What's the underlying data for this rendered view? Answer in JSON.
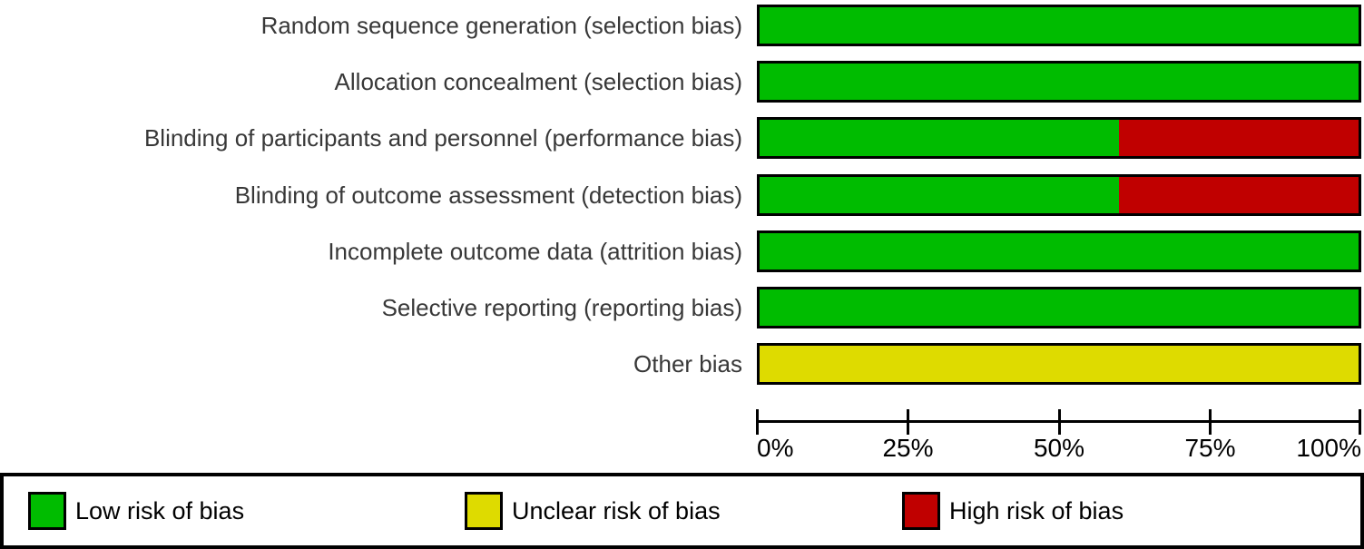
{
  "figure": {
    "background": "#ffffff",
    "text_color": "#383838",
    "axis_color": "#000000"
  },
  "chart_data": {
    "type": "bar",
    "orientation": "horizontal",
    "stacked": true,
    "title": "",
    "xlabel": "",
    "ylabel": "",
    "xlim": [
      0,
      100
    ],
    "grid": false,
    "legend_position": "bottom",
    "categories": [
      "Random sequence generation (selection bias)",
      "Allocation concealment (selection bias)",
      "Blinding of participants and personnel (performance bias)",
      "Blinding of outcome assessment (detection bias)",
      "Incomplete outcome data (attrition bias)",
      "Selective reporting (reporting bias)",
      "Other bias"
    ],
    "series": [
      {
        "name": "Low risk of bias",
        "color": "#00bc00",
        "values": [
          100,
          100,
          60,
          60,
          100,
          100,
          0
        ]
      },
      {
        "name": "Unclear risk of bias",
        "color": "#dedb00",
        "values": [
          0,
          0,
          0,
          0,
          0,
          0,
          100
        ]
      },
      {
        "name": "High risk of bias",
        "color": "#c00000",
        "values": [
          0,
          0,
          40,
          40,
          0,
          0,
          0
        ]
      }
    ],
    "x_tick_positions": [
      0,
      25,
      50,
      75,
      100
    ],
    "x_tick_labels": [
      "0%",
      "25%",
      "50%",
      "75%",
      "100%"
    ]
  },
  "legend": {
    "items": [
      {
        "label": "Low risk of bias",
        "color": "#00bc00"
      },
      {
        "label": "Unclear risk of bias",
        "color": "#dedb00"
      },
      {
        "label": "High risk of bias",
        "color": "#c00000"
      }
    ]
  },
  "layout": {
    "first_bar_top": 5,
    "row_pitch": 62.17
  }
}
